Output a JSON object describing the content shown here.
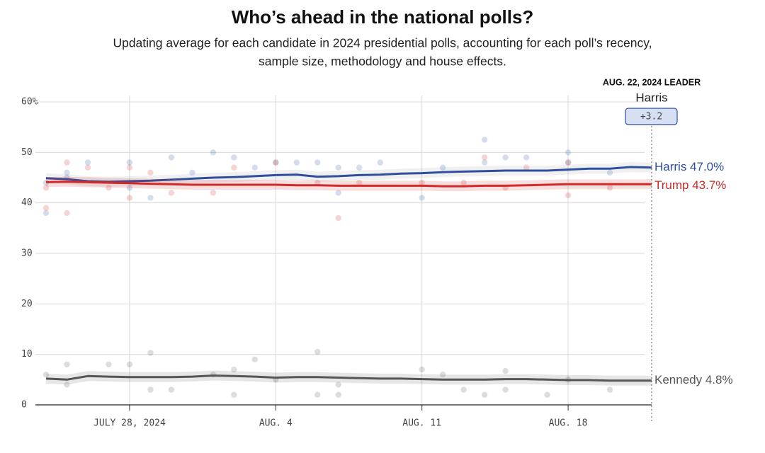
{
  "chart_data": {
    "type": "line",
    "title": "Who’s ahead in the national polls?",
    "subtitle": [
      "Updating average for each candidate in 2024 presidential polls, accounting for each poll’s recency,",
      "sample size, methodology and house effects."
    ],
    "annotation": {
      "title": "AUG. 22, 2024 LEADER",
      "leader": "Harris",
      "margin": {
        "value": 3.2,
        "label": "+3.2"
      }
    },
    "x": [
      "2024-07-24",
      "2024-07-25",
      "2024-07-26",
      "2024-07-27",
      "2024-07-28",
      "2024-07-29",
      "2024-07-30",
      "2024-07-31",
      "2024-08-01",
      "2024-08-02",
      "2024-08-03",
      "2024-08-04",
      "2024-08-05",
      "2024-08-06",
      "2024-08-07",
      "2024-08-08",
      "2024-08-09",
      "2024-08-10",
      "2024-08-11",
      "2024-08-12",
      "2024-08-13",
      "2024-08-14",
      "2024-08-15",
      "2024-08-16",
      "2024-08-17",
      "2024-08-18",
      "2024-08-19",
      "2024-08-20",
      "2024-08-21",
      "2024-08-22"
    ],
    "xlim": [
      "2024-07-24",
      "2024-08-22"
    ],
    "xticks": [
      {
        "value": "2024-07-28",
        "label": "JULY 28, 2024"
      },
      {
        "value": "2024-08-04",
        "label": "AUG. 4"
      },
      {
        "value": "2024-08-11",
        "label": "AUG. 11"
      },
      {
        "value": "2024-08-18",
        "label": "AUG. 18"
      }
    ],
    "ylim": [
      0,
      60
    ],
    "yticks": [
      0,
      10,
      20,
      30,
      40,
      50,
      {
        "value": 60,
        "label": "60%"
      }
    ],
    "grid": true,
    "series": [
      {
        "name": "Harris",
        "end_label": "Harris 47.0%",
        "color": "#2f4f9e",
        "values": [
          44.9,
          44.7,
          44.3,
          44.2,
          44.3,
          44.4,
          44.6,
          44.8,
          45.0,
          45.1,
          45.3,
          45.5,
          45.6,
          45.2,
          45.3,
          45.5,
          45.6,
          45.8,
          45.9,
          46.1,
          46.2,
          46.3,
          46.4,
          46.4,
          46.4,
          46.6,
          46.8,
          46.8,
          47.1,
          47.0
        ],
        "poll_x": [
          "2024-07-24",
          "2024-07-24",
          "2024-07-25",
          "2024-07-25",
          "2024-07-26",
          "2024-07-28",
          "2024-07-28",
          "2024-07-29",
          "2024-07-30",
          "2024-07-31",
          "2024-08-01",
          "2024-08-02",
          "2024-08-03",
          "2024-08-04",
          "2024-08-05",
          "2024-08-06",
          "2024-08-07",
          "2024-08-07",
          "2024-08-08",
          "2024-08-09",
          "2024-08-11",
          "2024-08-12",
          "2024-08-14",
          "2024-08-14",
          "2024-08-15",
          "2024-08-16",
          "2024-08-18",
          "2024-08-18",
          "2024-08-20"
        ],
        "poll_values": [
          44,
          38,
          46,
          45,
          48,
          48,
          43,
          41,
          49,
          46,
          50,
          49,
          47,
          48,
          48,
          48,
          47,
          42,
          47,
          48,
          41,
          47,
          52.5,
          48,
          49,
          49,
          50,
          48,
          46
        ]
      },
      {
        "name": "Trump",
        "end_label": "Trump 43.7%",
        "color": "#d02a2a",
        "values": [
          44.1,
          44.2,
          44.1,
          44.0,
          43.9,
          43.8,
          43.7,
          43.6,
          43.6,
          43.6,
          43.6,
          43.6,
          43.5,
          43.5,
          43.4,
          43.4,
          43.4,
          43.4,
          43.4,
          43.3,
          43.3,
          43.4,
          43.4,
          43.5,
          43.6,
          43.7,
          43.7,
          43.7,
          43.7,
          43.7
        ],
        "poll_x": [
          "2024-07-24",
          "2024-07-24",
          "2024-07-25",
          "2024-07-25",
          "2024-07-26",
          "2024-07-27",
          "2024-07-28",
          "2024-07-28",
          "2024-07-29",
          "2024-07-30",
          "2024-08-01",
          "2024-08-02",
          "2024-08-04",
          "2024-08-06",
          "2024-08-07",
          "2024-08-08",
          "2024-08-11",
          "2024-08-13",
          "2024-08-14",
          "2024-08-15",
          "2024-08-16",
          "2024-08-18",
          "2024-08-18",
          "2024-08-20"
        ],
        "poll_values": [
          43,
          39,
          48,
          38,
          47,
          43,
          47,
          41,
          46,
          42,
          42,
          47,
          48,
          44,
          37,
          44,
          44,
          44,
          49,
          43,
          47,
          41.5,
          48,
          43
        ]
      },
      {
        "name": "Kennedy",
        "end_label": "Kennedy 4.8%",
        "color": "#555555",
        "values": [
          5.2,
          5.0,
          5.7,
          5.6,
          5.5,
          5.5,
          5.5,
          5.6,
          5.8,
          5.7,
          5.6,
          5.4,
          5.5,
          5.5,
          5.4,
          5.3,
          5.2,
          5.2,
          5.1,
          5.0,
          5.0,
          5.0,
          5.1,
          5.1,
          5.0,
          4.9,
          4.9,
          4.8,
          4.8,
          4.8
        ],
        "poll_x": [
          "2024-07-24",
          "2024-07-25",
          "2024-07-25",
          "2024-07-27",
          "2024-07-28",
          "2024-07-29",
          "2024-07-29",
          "2024-07-30",
          "2024-08-01",
          "2024-08-02",
          "2024-08-02",
          "2024-08-03",
          "2024-08-04",
          "2024-08-06",
          "2024-08-06",
          "2024-08-07",
          "2024-08-07",
          "2024-08-11",
          "2024-08-12",
          "2024-08-13",
          "2024-08-14",
          "2024-08-15",
          "2024-08-15",
          "2024-08-17",
          "2024-08-18",
          "2024-08-20"
        ],
        "poll_values": [
          6,
          8,
          4,
          8,
          8,
          10.3,
          3,
          3,
          6,
          2,
          7,
          9,
          5,
          10.5,
          2,
          2,
          4,
          7,
          6,
          3,
          2,
          6.7,
          3,
          2,
          5,
          3
        ]
      }
    ]
  }
}
